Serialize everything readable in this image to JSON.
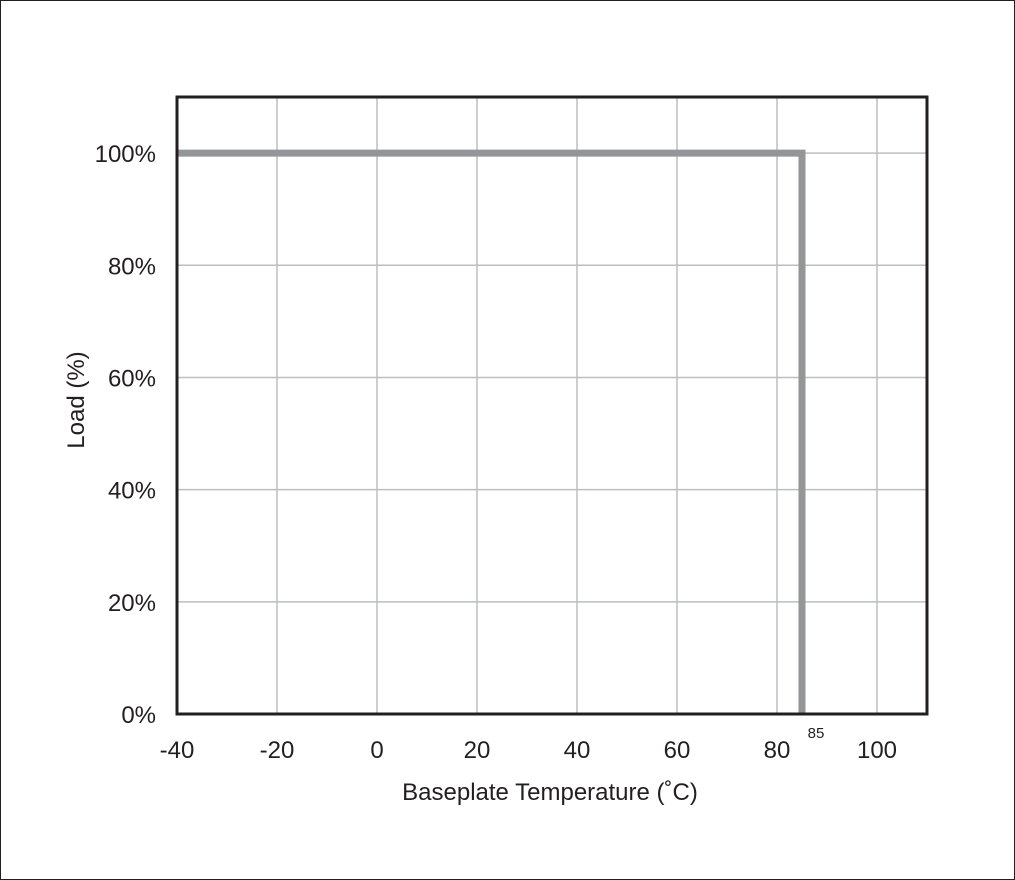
{
  "chart_data": {
    "type": "line",
    "xlabel": "Baseplate Temperature (˚C)",
    "ylabel": "Load (%)",
    "xlim": [
      -40,
      110
    ],
    "ylim": [
      0,
      110
    ],
    "x_ticks": [
      "-40",
      "-20",
      "0",
      "20",
      "40",
      "60",
      "80",
      "100"
    ],
    "x_tick_values": [
      -40,
      -20,
      0,
      20,
      40,
      60,
      80,
      100
    ],
    "y_ticks": [
      "0%",
      "20%",
      "40%",
      "60%",
      "80%",
      "100%"
    ],
    "y_tick_values": [
      0,
      20,
      40,
      60,
      80,
      100
    ],
    "grid": true,
    "annotations": [
      {
        "text": "85",
        "x": 85,
        "y": 0
      }
    ],
    "series": [
      {
        "x": [
          -40,
          85,
          85
        ],
        "y": [
          100,
          100,
          0
        ],
        "color": "#939598"
      }
    ]
  },
  "colors": {
    "frame": "#231f20",
    "grid": "#bcbec0",
    "series": "#939598"
  }
}
